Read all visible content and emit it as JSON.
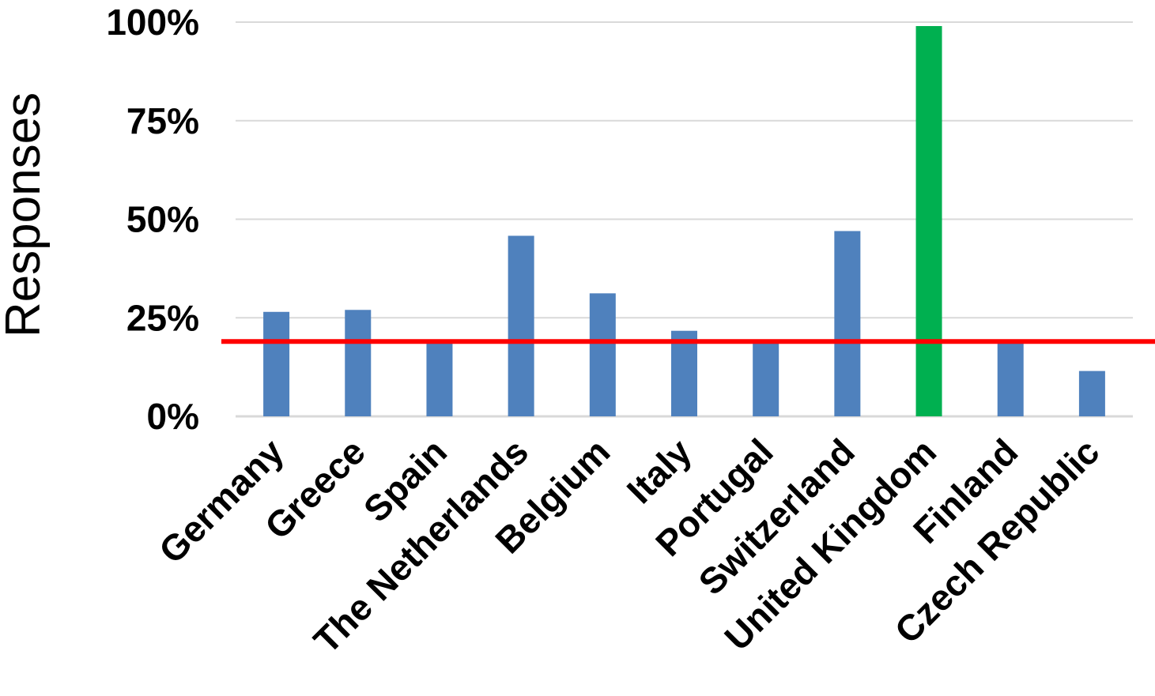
{
  "chart_data": {
    "type": "bar",
    "title": "",
    "xlabel": "",
    "ylabel": "Responses",
    "ylim": [
      0,
      100
    ],
    "yticks": [
      0,
      25,
      50,
      75,
      100
    ],
    "ytick_labels": [
      "0%",
      "25%",
      "50%",
      "75%",
      "100%"
    ],
    "grid": "horizontal",
    "legend": "none",
    "categories": [
      "Germany",
      "Greece",
      "Spain",
      "The Netherlands",
      "Belgium",
      "Italy",
      "Portugal",
      "Switzerland",
      "United Kingdom",
      "Finland",
      "Czech Republic"
    ],
    "values": [
      26.5,
      27,
      18.5,
      45.8,
      31.2,
      21.7,
      19,
      47,
      99,
      19,
      11.5
    ],
    "highlight_category": "United Kingdom",
    "reference_line": {
      "value": 19,
      "color": "#ff0000"
    },
    "colors": {
      "bar": "#4f81bd",
      "highlight": "#00b050",
      "grid": "#d9d9d9"
    }
  }
}
